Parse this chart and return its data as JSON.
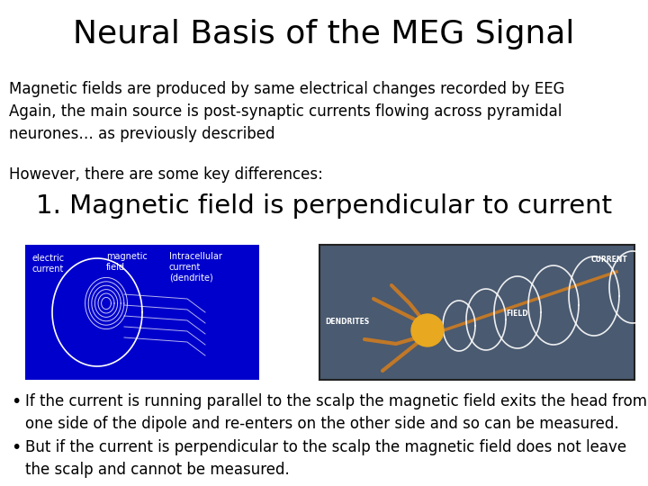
{
  "title": "Neural Basis of the MEG Signal",
  "title_fontsize": 26,
  "bg_color": "#ffffff",
  "body_text": "Magnetic fields are produced by same electrical changes recorded by EEG\nAgain, the main source is post-synaptic currents flowing across pyramidal\nneurones… as previously described",
  "body_fontsize": 12,
  "however_text": "However, there are some key differences:",
  "however_fontsize": 12,
  "subheading": "1. Magnetic field is perpendicular to current",
  "subheading_fontsize": 21,
  "bullet1": "If the current is running parallel to the scalp the magnetic field exits the head from\none side of the dipole and re-enters on the other side and so can be measured.",
  "bullet2": "But if the current is perpendicular to the scalp the magnetic field does not leave\nthe scalp and cannot be measured.",
  "bullet_fontsize": 12,
  "image1_color": "#0000cc",
  "image2_color": "#4a5a70",
  "text_color": "#000000",
  "font_family": "DejaVu Sans"
}
